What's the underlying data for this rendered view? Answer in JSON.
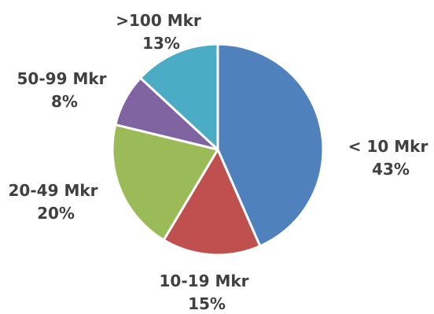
{
  "chart_data": {
    "type": "pie",
    "categories": [
      "< 10 Mkr",
      "10-19 Mkr",
      "20-49 Mkr",
      "50-99 Mkr",
      ">100 Mkr"
    ],
    "values": [
      43,
      15,
      20,
      8,
      13
    ],
    "percent_labels": [
      "43%",
      "15%",
      "20%",
      "8%",
      "13%"
    ],
    "colors": [
      "#4F81BD",
      "#C0504D",
      "#9BBB59",
      "#8064A2",
      "#4BACC6"
    ],
    "start_position": "12 o'clock",
    "direction": "clockwise",
    "legend": "none (labels beside slices)"
  }
}
